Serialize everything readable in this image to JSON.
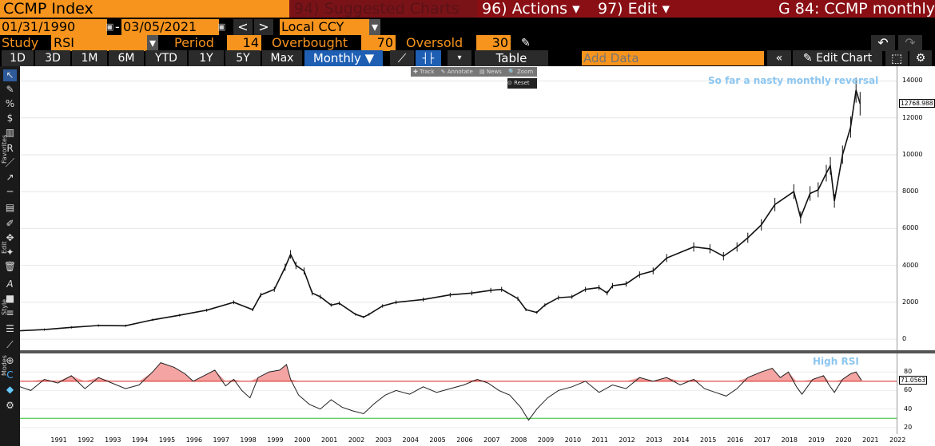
{
  "header": {
    "ticker": "CCMP Index",
    "suggested": "94) Suggested Charts",
    "actions": "96) Actions ▾",
    "edit": "97) Edit ▾",
    "title": "G 84: CCMP monthly"
  },
  "range": {
    "start": "01/31/1990",
    "end": "03/05/2021",
    "currency": "Local CCY"
  },
  "study": {
    "label": "Study",
    "name": "RSI",
    "period_label": "Period",
    "period": "14",
    "overbought_label": "Overbought",
    "overbought": "70",
    "oversold_label": "Oversold",
    "oversold": "30"
  },
  "periods": [
    "1D",
    "3D",
    "1M",
    "6M",
    "YTD",
    "1Y",
    "5Y",
    "Max"
  ],
  "frequency": "Monthly ▼",
  "table_label": "Table",
  "add_data_placeholder": "Add Data",
  "edit_chart": "Edit Chart",
  "mini_toolbar": {
    "track": "Track",
    "annotate": "Annotate",
    "news": "News",
    "zoom": "Zoom",
    "reset": "Reset"
  },
  "side_labels": {
    "favorites": "Favorites",
    "edit": "Edit",
    "style": "Style",
    "modes": "Modes"
  },
  "annotations": {
    "price": "So far a nasty monthly reversal",
    "rsi": "High RSI"
  },
  "last_price": "12768.988",
  "last_rsi": "71.0563",
  "colors": {
    "brand_orange": "#f7941d",
    "header_red": "#8a0f14",
    "frequency_blue": "#1e5fb4",
    "rsi_overbought": "#d9221c",
    "rsi_oversold": "#2fbf2f"
  },
  "chart_data": [
    {
      "type": "line",
      "title": "",
      "ylim": [
        -600,
        14800
      ],
      "yticks": [
        0,
        2000,
        4000,
        6000,
        8000,
        10000,
        12000,
        14000
      ],
      "x": [
        1990,
        1991,
        1992,
        1993,
        1994,
        1995,
        1996,
        1997,
        1998,
        1998.7,
        1999,
        1999.5,
        1999.9,
        2000.1,
        2000.3,
        2000.6,
        2000.9,
        2001.2,
        2001.6,
        2001.9,
        2002.5,
        2002.8,
        2003,
        2003.5,
        2004,
        2005,
        2006,
        2006.8,
        2007.5,
        2007.9,
        2008.5,
        2008.8,
        2009.2,
        2009.5,
        2010,
        2010.5,
        2011,
        2011.5,
        2011.8,
        2012,
        2012.5,
        2013,
        2013.5,
        2014,
        2015,
        2015.6,
        2016.1,
        2016.6,
        2017,
        2017.5,
        2018,
        2018.7,
        2018.95,
        2019.3,
        2019.6,
        2019.9,
        2020.05,
        2020.2,
        2020.5,
        2020.8,
        2021,
        2021.15
      ],
      "series": [
        {
          "values": [
            450,
            520,
            640,
            740,
            730,
            1050,
            1300,
            1570,
            2000,
            1600,
            2400,
            2700,
            3900,
            4600,
            4000,
            3700,
            2500,
            2300,
            1850,
            1950,
            1350,
            1200,
            1350,
            1800,
            2000,
            2150,
            2400,
            2500,
            2650,
            2700,
            2200,
            1600,
            1450,
            1850,
            2250,
            2300,
            2700,
            2800,
            2500,
            2900,
            3000,
            3500,
            3700,
            4400,
            5000,
            4900,
            4500,
            5000,
            5500,
            6200,
            7300,
            8000,
            6600,
            7900,
            8100,
            9000,
            9400,
            7500,
            10000,
            11500,
            13500,
            12769
          ]
        }
      ],
      "xlim": [
        1990.1,
        2022.5
      ],
      "xlabels": [
        "1991",
        "1992",
        "1993",
        "1994",
        "1995",
        "1996",
        "1997",
        "1998",
        "1999",
        "2000",
        "2001",
        "2002",
        "2003",
        "2004",
        "2005",
        "2006",
        "2007",
        "2008",
        "2009",
        "2010",
        "2011",
        "2012",
        "2013",
        "2014",
        "2015",
        "2016",
        "2017",
        "2018",
        "2019",
        "2020",
        "2021",
        "2022"
      ]
    },
    {
      "type": "line",
      "title": "",
      "ylim": [
        13,
        100
      ],
      "yticks": [
        20,
        40,
        60,
        80
      ],
      "overbought": 70,
      "oversold": 30,
      "x": [
        1990,
        1990.5,
        1991,
        1991.5,
        1992,
        1992.5,
        1993,
        1993.5,
        1994,
        1994.5,
        1995,
        1995.3,
        1995.8,
        1996.2,
        1996.5,
        1996.9,
        1997.3,
        1997.7,
        1998,
        1998.3,
        1998.6,
        1998.9,
        1999.3,
        1999.7,
        1999.95,
        2000.1,
        2000.4,
        2000.8,
        2001.2,
        2001.6,
        2002,
        2002.4,
        2002.8,
        2003.2,
        2003.6,
        2004,
        2004.5,
        2005,
        2005.5,
        2006,
        2006.5,
        2007,
        2007.4,
        2007.8,
        2008.2,
        2008.6,
        2008.9,
        2009.2,
        2009.6,
        2010,
        2010.5,
        2011,
        2011.5,
        2012,
        2012.5,
        2013,
        2013.5,
        2014,
        2014.5,
        2015,
        2015.4,
        2015.8,
        2016.2,
        2016.6,
        2017,
        2017.5,
        2017.9,
        2018.2,
        2018.5,
        2018.8,
        2019,
        2019.4,
        2019.8,
        2020,
        2020.2,
        2020.5,
        2020.8,
        2021,
        2021.2
      ],
      "series": [
        {
          "values": [
            65,
            60,
            72,
            68,
            76,
            62,
            74,
            68,
            62,
            66,
            80,
            90,
            85,
            78,
            70,
            76,
            82,
            65,
            72,
            60,
            52,
            74,
            80,
            82,
            88,
            72,
            55,
            45,
            40,
            50,
            42,
            38,
            35,
            46,
            55,
            60,
            56,
            64,
            58,
            62,
            66,
            72,
            68,
            60,
            55,
            42,
            28,
            40,
            52,
            60,
            64,
            70,
            58,
            66,
            62,
            74,
            70,
            74,
            66,
            72,
            62,
            58,
            54,
            62,
            74,
            80,
            84,
            74,
            80,
            64,
            56,
            72,
            76,
            66,
            58,
            72,
            78,
            80,
            71
          ]
        }
      ],
      "xlim": [
        1990.1,
        2022.5
      ]
    }
  ]
}
